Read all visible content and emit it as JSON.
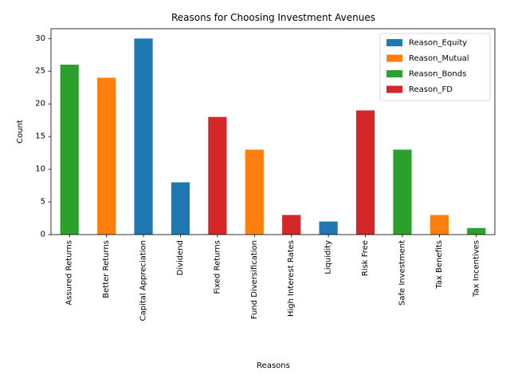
{
  "chart_data": {
    "type": "bar",
    "title": "Reasons for Choosing Investment Avenues",
    "xlabel": "Reasons",
    "ylabel": "Count",
    "ylim": [
      0,
      31.5
    ],
    "yticks": [
      0,
      5,
      10,
      15,
      20,
      25,
      30
    ],
    "grid": false,
    "legend_position": "top-right",
    "stacked": true,
    "categories": [
      "Assured Returns",
      "Better Returns",
      "Capital Appreciation",
      "Dividend",
      "Fixed Returns",
      "Fund Diversification",
      "High Interest Rates",
      "Liquidity",
      "Risk Free",
      "Safe Investment",
      "Tax Benefits",
      "Tax Incentives"
    ],
    "series": [
      {
        "name": "Reason_Equity",
        "color": "#1f77b4",
        "values": [
          0,
          0,
          30,
          8,
          0,
          0,
          0,
          2,
          0,
          0,
          0,
          0
        ]
      },
      {
        "name": "Reason_Mutual",
        "color": "#ff7f0e",
        "values": [
          0,
          24,
          0,
          0,
          0,
          13,
          0,
          0,
          0,
          0,
          3,
          0
        ]
      },
      {
        "name": "Reason_Bonds",
        "color": "#2ca02c",
        "values": [
          26,
          0,
          0,
          0,
          0,
          0,
          0,
          0,
          0,
          13,
          0,
          1
        ]
      },
      {
        "name": "Reason_FD",
        "color": "#d62728",
        "values": [
          0,
          0,
          0,
          0,
          18,
          0,
          3,
          0,
          19,
          0,
          0,
          0
        ]
      }
    ]
  }
}
